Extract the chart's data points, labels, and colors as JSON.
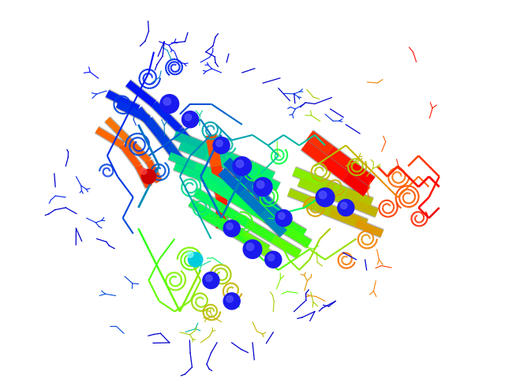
{
  "background_color": "#ffffff",
  "figsize": [
    6.4,
    4.8
  ],
  "dpi": 100,
  "seed": 42,
  "rainbow_colors": [
    "#0000ff",
    "#0022ee",
    "#0044dd",
    "#0066cc",
    "#0088bb",
    "#00aaaa",
    "#00cc99",
    "#00ee77",
    "#00ff55",
    "#22ff22",
    "#55ff00",
    "#88ee00",
    "#aacc00",
    "#ccaa00",
    "#ee8800",
    "#ff6600",
    "#ff4400",
    "#ff2200",
    "#ff0000",
    "#dd0000",
    "#bb0000"
  ]
}
